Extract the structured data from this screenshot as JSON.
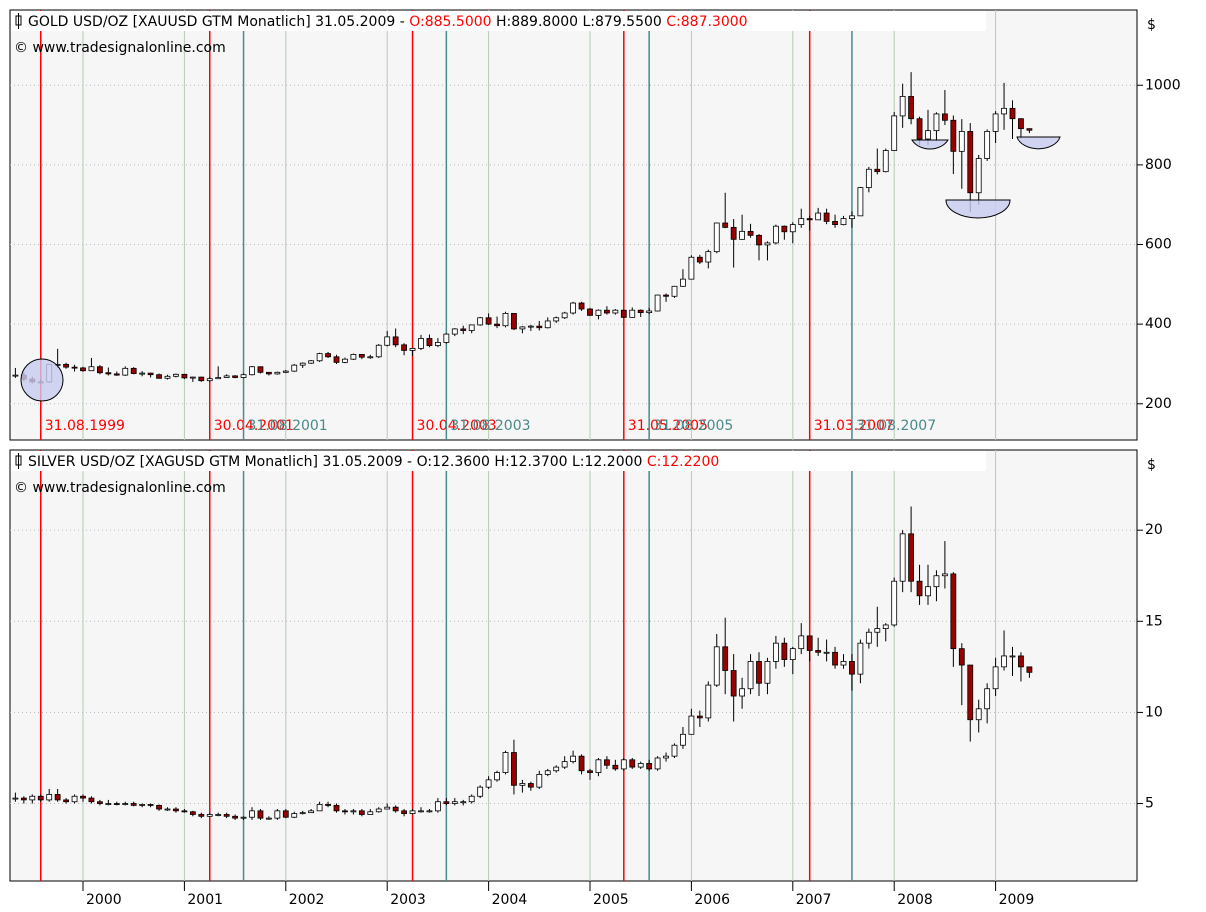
{
  "chart_data": [
    {
      "type": "candlestick",
      "title": "GOLD USD/OZ [XAUUSD GTM  Monatlich]",
      "date": "31.05.2009 -",
      "ohlc_labels": [
        {
          "text": "O:885.5000",
          "color": "#ff0000"
        },
        {
          "text": "H:889.8000 L:879.5500",
          "color": "#000000"
        },
        {
          "text": "C:887.3000",
          "color": "#ff0000"
        }
      ],
      "source": "© www.tradesignalonline.com",
      "unit": "$",
      "ylim": [
        109,
        1189
      ],
      "yticks": [
        200,
        400,
        600,
        800,
        1000
      ],
      "up_color": "#ffffff",
      "down_color": "#990000",
      "close": [
        272,
        262,
        255,
        255,
        299,
        299,
        292,
        290,
        283,
        293,
        278,
        275,
        272,
        289,
        276,
        277,
        273,
        264,
        269,
        274,
        265,
        267,
        258,
        263,
        266,
        270,
        266,
        273,
        293,
        279,
        275,
        279,
        282,
        297,
        302,
        308,
        326,
        318,
        304,
        312,
        324,
        317,
        318,
        347,
        368,
        348,
        334,
        339,
        364,
        346,
        354,
        375,
        388,
        384,
        398,
        416,
        400,
        396,
        427,
        388,
        393,
        395,
        391,
        408,
        416,
        428,
        453,
        438,
        422,
        435,
        428,
        435,
        417,
        435,
        429,
        433,
        473,
        470,
        495,
        513,
        568,
        556,
        582,
        654,
        643,
        613,
        633,
        623,
        599,
        604,
        646,
        632,
        650,
        665,
        662,
        679,
        658,
        650,
        665,
        672,
        743,
        789,
        783,
        836,
        923,
        972,
        916,
        865,
        886,
        928,
        912,
        834,
        884,
        730,
        816,
        884,
        928,
        942,
        916,
        891,
        887
      ],
      "high": [
        290,
        280,
        268,
        262,
        300,
        338,
        303,
        298,
        293,
        315,
        297,
        291,
        281,
        294,
        292,
        282,
        278,
        276,
        273,
        276,
        275,
        268,
        268,
        268,
        294,
        274,
        272,
        276,
        295,
        294,
        279,
        281,
        285,
        300,
        304,
        310,
        328,
        330,
        323,
        316,
        326,
        325,
        323,
        350,
        383,
        389,
        352,
        340,
        373,
        374,
        365,
        377,
        390,
        396,
        398,
        418,
        427,
        419,
        431,
        427,
        395,
        398,
        408,
        417,
        419,
        431,
        456,
        456,
        441,
        437,
        445,
        438,
        436,
        442,
        437,
        441,
        474,
        477,
        496,
        538,
        573,
        574,
        587,
        655,
        730,
        664,
        675,
        652,
        626,
        608,
        650,
        648,
        656,
        690,
        672,
        692,
        690,
        675,
        672,
        683,
        744,
        795,
        841,
        841,
        933,
        1004,
        1033,
        921,
        938,
        932,
        988,
        924,
        915,
        905,
        825,
        889,
        935,
        1006,
        962,
        917,
        890
      ],
      "low": [
        265,
        256,
        251,
        252,
        253,
        290,
        288,
        281,
        280,
        283,
        274,
        271,
        270,
        270,
        274,
        269,
        266,
        263,
        261,
        266,
        262,
        255,
        255,
        255,
        262,
        265,
        264,
        264,
        271,
        276,
        271,
        273,
        277,
        280,
        290,
        300,
        305,
        315,
        300,
        302,
        310,
        312,
        313,
        315,
        344,
        342,
        322,
        320,
        335,
        342,
        342,
        351,
        370,
        375,
        377,
        396,
        398,
        390,
        392,
        385,
        377,
        383,
        384,
        389,
        403,
        413,
        424,
        433,
        421,
        412,
        424,
        424,
        416,
        416,
        418,
        425,
        432,
        456,
        466,
        494,
        513,
        551,
        540,
        578,
        641,
        542,
        612,
        617,
        560,
        560,
        600,
        612,
        603,
        642,
        635,
        663,
        651,
        642,
        648,
        642,
        672,
        731,
        776,
        781,
        835,
        893,
        902,
        850,
        850,
        860,
        900,
        777,
        740,
        681,
        700,
        810,
        855,
        888,
        865,
        866,
        880
      ],
      "markers": [
        {
          "label": "31.08.1999",
          "color": "#ff0000"
        },
        {
          "label": "30.04.2001",
          "color": "#ff0000"
        },
        {
          "label": "31.08.2001",
          "color": "#4a8a8a"
        },
        {
          "label": "30.04.2003",
          "color": "#ff0000"
        },
        {
          "label": "31.08.2003",
          "color": "#4a8a8a"
        },
        {
          "label": "31.05.2005",
          "color": "#ff0000"
        },
        {
          "label": "31.08.2005",
          "color": "#4a8a8a"
        },
        {
          "label": "31.03.2007",
          "color": "#ff0000"
        },
        {
          "label": "31.08.2007",
          "color": "#4a8a8a"
        }
      ]
    },
    {
      "type": "candlestick",
      "title": "SILVER USD/OZ [XAGUSD GTM  Monatlich]",
      "date": "31.05.2009 -",
      "ohlc_labels": [
        {
          "text": "O:12.3600",
          "color": "#000000"
        },
        {
          "text": "H:12.3700 L:12.2000",
          "color": "#000000"
        },
        {
          "text": "C:12.2200",
          "color": "#ff0000"
        }
      ],
      "source": "© www.tradesignalonline.com",
      "unit": "$",
      "ylim": [
        0.75,
        24.4
      ],
      "yticks": [
        5,
        10,
        15,
        20
      ],
      "up_color": "#ffffff",
      "down_color": "#990000",
      "close": [
        5.3,
        5.2,
        5.4,
        5.2,
        5.5,
        5.2,
        5.1,
        5.4,
        5.3,
        5.1,
        5.0,
        5.0,
        4.95,
        5.0,
        4.9,
        4.95,
        4.9,
        4.7,
        4.7,
        4.6,
        4.55,
        4.4,
        4.3,
        4.4,
        4.4,
        4.3,
        4.2,
        4.25,
        4.6,
        4.2,
        4.2,
        4.6,
        4.25,
        4.45,
        4.5,
        4.6,
        4.95,
        4.9,
        4.6,
        4.55,
        4.6,
        4.4,
        4.55,
        4.7,
        4.8,
        4.6,
        4.45,
        4.6,
        4.6,
        4.6,
        5.1,
        5.0,
        5.1,
        5.1,
        5.4,
        5.9,
        6.3,
        6.7,
        7.8,
        6.0,
        6.1,
        5.9,
        6.6,
        6.8,
        7.0,
        7.3,
        7.6,
        6.8,
        6.7,
        7.4,
        7.1,
        6.9,
        7.4,
        7.0,
        7.2,
        6.9,
        7.5,
        7.6,
        8.2,
        8.8,
        9.8,
        9.7,
        11.5,
        13.6,
        12.3,
        10.9,
        11.3,
        12.8,
        11.6,
        12.8,
        13.8,
        12.9,
        13.5,
        14.2,
        13.4,
        13.3,
        13.3,
        12.6,
        12.8,
        12.1,
        13.8,
        14.4,
        14.6,
        14.8,
        17.2,
        19.8,
        17.2,
        16.4,
        16.9,
        17.5,
        17.6,
        13.5,
        12.6,
        9.6,
        10.2,
        11.3,
        12.5,
        13.1,
        13.1,
        12.5,
        12.2
      ],
      "high": [
        5.6,
        5.4,
        5.5,
        5.5,
        5.8,
        5.8,
        5.3,
        5.5,
        5.5,
        5.4,
        5.2,
        5.2,
        5.1,
        5.1,
        5.1,
        5.0,
        5.0,
        4.95,
        4.8,
        4.8,
        4.7,
        4.6,
        4.5,
        4.5,
        4.5,
        4.5,
        4.4,
        4.3,
        4.8,
        4.7,
        4.3,
        4.7,
        4.7,
        4.55,
        4.6,
        4.7,
        5.1,
        5.1,
        5.0,
        4.7,
        4.7,
        4.7,
        4.7,
        4.8,
        5.0,
        4.9,
        4.7,
        4.7,
        4.8,
        4.7,
        5.3,
        5.3,
        5.3,
        5.2,
        5.5,
        6.0,
        6.5,
        6.8,
        7.9,
        8.5,
        6.3,
        6.2,
        6.8,
        6.9,
        7.1,
        7.6,
        7.9,
        7.7,
        6.9,
        7.5,
        7.6,
        7.4,
        7.5,
        7.5,
        7.3,
        7.4,
        7.6,
        7.8,
        8.3,
        9.2,
        10.2,
        10.1,
        11.7,
        14.3,
        15.2,
        13.2,
        11.9,
        13.2,
        13.3,
        13.0,
        14.2,
        14.1,
        13.6,
        14.9,
        14.2,
        14.1,
        14.0,
        13.6,
        13.2,
        13.2,
        14.0,
        14.6,
        15.8,
        14.9,
        17.4,
        20.0,
        21.3,
        18.1,
        18.1,
        17.8,
        19.4,
        17.7,
        13.8,
        12.5,
        10.7,
        11.6,
        13.0,
        14.5,
        13.6,
        13.3,
        12.4
      ],
      "low": [
        5.1,
        5.0,
        5.0,
        5.1,
        5.1,
        5.1,
        5.0,
        5.0,
        5.1,
        5.0,
        4.9,
        4.9,
        4.9,
        4.9,
        4.85,
        4.8,
        4.8,
        4.6,
        4.6,
        4.5,
        4.5,
        4.3,
        4.2,
        4.3,
        4.3,
        4.2,
        4.1,
        4.1,
        4.1,
        4.1,
        4.1,
        4.1,
        4.2,
        4.2,
        4.4,
        4.5,
        4.6,
        4.8,
        4.5,
        4.4,
        4.4,
        4.3,
        4.4,
        4.5,
        4.7,
        4.5,
        4.3,
        4.4,
        4.5,
        4.5,
        4.5,
        4.9,
        4.9,
        4.9,
        5.0,
        5.3,
        5.8,
        6.2,
        6.6,
        5.5,
        5.6,
        5.7,
        5.8,
        6.5,
        6.7,
        6.9,
        7.2,
        6.6,
        6.3,
        6.5,
        6.9,
        6.8,
        6.8,
        6.9,
        6.9,
        6.8,
        6.8,
        7.3,
        7.5,
        8.0,
        8.8,
        9.2,
        9.5,
        11.4,
        11.0,
        9.5,
        10.2,
        11.0,
        10.9,
        11.0,
        12.4,
        12.5,
        12.1,
        13.2,
        12.8,
        13.1,
        12.8,
        12.4,
        12.4,
        11.2,
        11.6,
        13.5,
        13.6,
        13.9,
        14.7,
        16.6,
        16.6,
        15.9,
        15.9,
        16.1,
        16.8,
        12.5,
        10.4,
        8.4,
        8.9,
        9.4,
        10.9,
        12.3,
        12.0,
        11.7,
        11.9
      ],
      "xtick_labels": [
        "2000",
        "2001",
        "2002",
        "2003",
        "2004",
        "2005",
        "2006",
        "2007",
        "2008",
        "2009"
      ]
    }
  ]
}
